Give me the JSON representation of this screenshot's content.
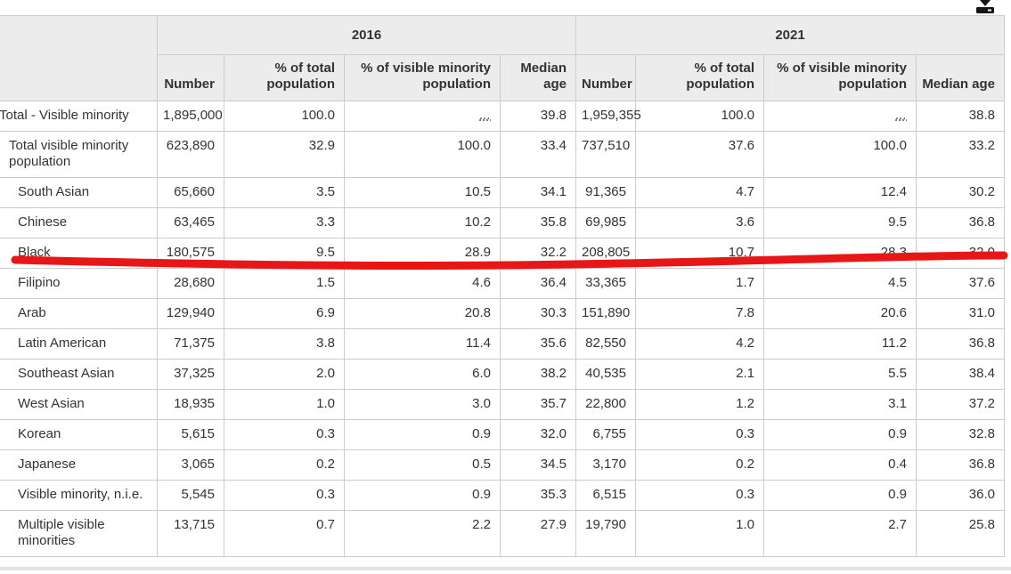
{
  "icons": {
    "download": "download-icon"
  },
  "colors": {
    "annotation_red": "#e81616",
    "header_bg": "#ececec",
    "border": "#cccccc",
    "text": "#333333"
  },
  "table": {
    "na_symbol": "...",
    "groups": [
      {
        "label": "2016"
      },
      {
        "label": "2021"
      }
    ],
    "sub_headers": [
      "Number",
      "% of total population",
      "% of visible minority population",
      "Median age"
    ],
    "rows": [
      {
        "label": "Total - Visible minority",
        "indent": 0,
        "cells": [
          "1,895,000",
          "100.0",
          "...",
          "39.8",
          "1,959,355",
          "100.0",
          "...",
          "38.8"
        ]
      },
      {
        "label": "Total visible minority population",
        "indent": 1,
        "cells": [
          "623,890",
          "32.9",
          "100.0",
          "33.4",
          "737,510",
          "37.6",
          "100.0",
          "33.2"
        ]
      },
      {
        "label": "South Asian",
        "indent": 2,
        "cells": [
          "65,660",
          "3.5",
          "10.5",
          "34.1",
          "91,365",
          "4.7",
          "12.4",
          "30.2"
        ]
      },
      {
        "label": "Chinese",
        "indent": 2,
        "cells": [
          "63,465",
          "3.3",
          "10.2",
          "35.8",
          "69,985",
          "3.6",
          "9.5",
          "36.8"
        ]
      },
      {
        "label": "Black",
        "indent": 2,
        "cells": [
          "180,575",
          "9.5",
          "28.9",
          "32.2",
          "208,805",
          "10.7",
          "28.3",
          "32.0"
        ]
      },
      {
        "label": "Filipino",
        "indent": 2,
        "cells": [
          "28,680",
          "1.5",
          "4.6",
          "36.4",
          "33,365",
          "1.7",
          "4.5",
          "37.6"
        ]
      },
      {
        "label": "Arab",
        "indent": 2,
        "cells": [
          "129,940",
          "6.9",
          "20.8",
          "30.3",
          "151,890",
          "7.8",
          "20.6",
          "31.0"
        ]
      },
      {
        "label": "Latin American",
        "indent": 2,
        "cells": [
          "71,375",
          "3.8",
          "11.4",
          "35.6",
          "82,550",
          "4.2",
          "11.2",
          "36.8"
        ]
      },
      {
        "label": "Southeast Asian",
        "indent": 2,
        "cells": [
          "37,325",
          "2.0",
          "6.0",
          "38.2",
          "40,535",
          "2.1",
          "5.5",
          "38.4"
        ]
      },
      {
        "label": "West Asian",
        "indent": 2,
        "cells": [
          "18,935",
          "1.0",
          "3.0",
          "35.7",
          "22,800",
          "1.2",
          "3.1",
          "37.2"
        ]
      },
      {
        "label": "Korean",
        "indent": 2,
        "cells": [
          "5,615",
          "0.3",
          "0.9",
          "32.0",
          "6,755",
          "0.3",
          "0.9",
          "32.8"
        ]
      },
      {
        "label": "Japanese",
        "indent": 2,
        "cells": [
          "3,065",
          "0.2",
          "0.5",
          "34.5",
          "3,170",
          "0.2",
          "0.4",
          "36.8"
        ]
      },
      {
        "label": "Visible minority, n.i.e.",
        "indent": 2,
        "cells": [
          "5,545",
          "0.3",
          "0.9",
          "35.3",
          "6,515",
          "0.3",
          "0.9",
          "36.0"
        ]
      },
      {
        "label": "Multiple visible minorities",
        "indent": 2,
        "cells": [
          "13,715",
          "0.7",
          "2.2",
          "27.9",
          "19,790",
          "1.0",
          "2.7",
          "25.8"
        ]
      }
    ]
  }
}
